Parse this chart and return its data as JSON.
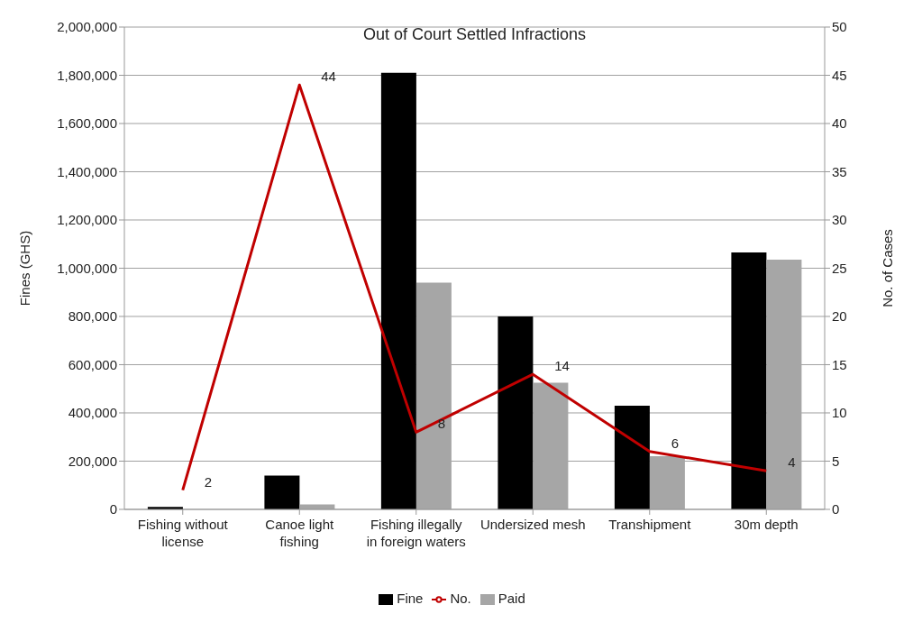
{
  "chart_data": {
    "type": "bar",
    "title": "Out of Court Settled Infractions",
    "ylabel": "Fines (GHS)",
    "y2label": "No. of Cases",
    "categories": [
      "Fishing without license",
      "Canoe light fishing",
      "Fishing illegally in foreign waters",
      "Undersized mesh",
      "Transhipment",
      "30m depth"
    ],
    "series": [
      {
        "name": "Fine",
        "color": "#000000",
        "values": [
          10000,
          140000,
          1810000,
          800000,
          430000,
          1065000
        ]
      },
      {
        "name": "Paid",
        "color": "#a6a6a6",
        "values": [
          null,
          20000,
          940000,
          525000,
          220000,
          1035000
        ]
      },
      {
        "name": "No.",
        "type": "line",
        "axis": "y2",
        "color": "#c00000",
        "values": [
          2,
          44,
          8,
          14,
          6,
          4
        ],
        "value_labels": [
          "2",
          "44",
          "8",
          "14",
          "6",
          "4"
        ]
      }
    ],
    "ylim": [
      0,
      2000000
    ],
    "yticks": [
      0,
      {
        "value": 200000,
        "label": "200,000"
      },
      {
        "value": 400000,
        "label": "400,000"
      },
      {
        "value": 600000,
        "label": "600,000"
      },
      {
        "value": 800000,
        "label": "800,000"
      },
      {
        "value": 1000000,
        "label": "1,000,000"
      },
      {
        "value": 1200000,
        "label": "1,200,000"
      },
      {
        "value": 1400000,
        "label": "1,400,000"
      },
      {
        "value": 1600000,
        "label": "1,600,000"
      },
      {
        "value": 1800000,
        "label": "1,800,000"
      },
      {
        "value": 2000000,
        "label": "2,000,000"
      }
    ],
    "y2lim": [
      0,
      50
    ],
    "y2ticks": [
      0,
      5,
      10,
      15,
      20,
      25,
      30,
      35,
      40,
      45,
      50
    ],
    "grid": "y",
    "legend": "bottom",
    "marker": "none",
    "line_style": "solid"
  }
}
